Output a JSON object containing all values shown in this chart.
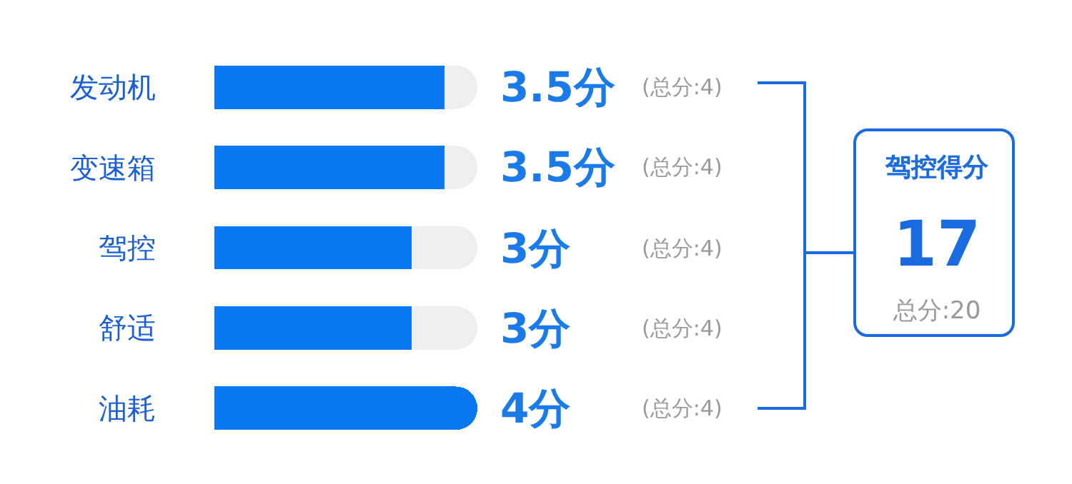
{
  "chart_data": {
    "type": "bar",
    "orientation": "horizontal",
    "categories": [
      "发动机",
      "变速箱",
      "驾控",
      "舒适",
      "油耗"
    ],
    "series": [
      {
        "color": "#0a78f0",
        "values": [
          3.5,
          3.5,
          3,
          3,
          4
        ],
        "value_labels": [
          "3.5分",
          "3.5分",
          "3分",
          "3分",
          "4分"
        ]
      },
      {
        "color": "#eeeeee",
        "values": [
          0.5,
          0.5,
          1,
          1,
          0
        ]
      }
    ],
    "stacked": true,
    "xlim": [
      0,
      4
    ],
    "tick_labels": "y",
    "annotations": [
      "(总分:4)",
      "(总分:4)",
      "(总分:4)",
      "(总分:4)",
      "(总分:4)",
      "驾控得分",
      "17",
      "总分:20"
    ]
  }
}
